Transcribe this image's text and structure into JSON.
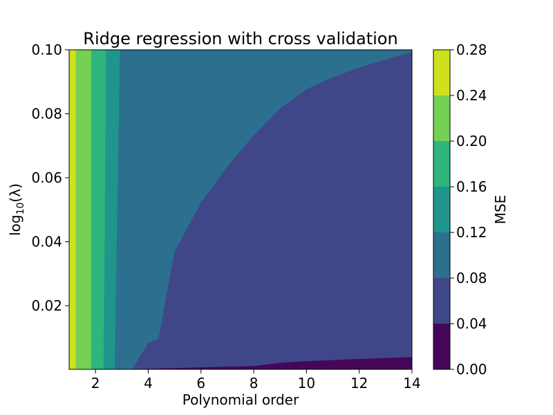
{
  "chart_data": {
    "type": "contour",
    "title": "Ridge regression with cross validation",
    "xlabel": "Polynomial order",
    "ylabel": {
      "prefix": "log",
      "sub": "10",
      "suffix": "(λ)"
    },
    "xlim": [
      1,
      14
    ],
    "ylim": [
      0.0001,
      0.1
    ],
    "xticks": [
      2,
      4,
      6,
      8,
      10,
      12,
      14
    ],
    "xtick_labels": [
      "2",
      "4",
      "6",
      "8",
      "10",
      "12",
      "14"
    ],
    "yticks": [
      0.02,
      0.04,
      0.06,
      0.08,
      0.1
    ],
    "ytick_labels": [
      "0.02",
      "0.04",
      "0.06",
      "0.08",
      "0.10"
    ],
    "colorbar": {
      "label": "MSE",
      "levels": [
        0.0,
        0.04,
        0.08,
        0.12,
        0.16,
        0.2,
        0.24,
        0.28
      ],
      "tick_labels": [
        "0.00",
        "0.04",
        "0.08",
        "0.12",
        "0.16",
        "0.20",
        "0.24",
        "0.28"
      ],
      "colors": [
        "#46075a",
        "#3f4788",
        "#2d6f8e",
        "#1f958b",
        "#2fb47c",
        "#75d054",
        "#cfe11c"
      ]
    },
    "contour_boundaries": [
      {
        "level": 0.04,
        "points": [
          [
            3.4,
            0.0001
          ],
          [
            8,
            0.0011
          ],
          [
            9,
            0.0021
          ],
          [
            10,
            0.0026
          ],
          [
            12,
            0.0033
          ],
          [
            14,
            0.0039
          ],
          [
            14,
            0.0001
          ]
        ]
      },
      {
        "level": 0.08,
        "points": [
          [
            3.4,
            0.0001
          ],
          [
            4,
            0.0082
          ],
          [
            4.4,
            0.0097
          ],
          [
            5,
            0.0367
          ],
          [
            6,
            0.0522
          ],
          [
            7,
            0.0634
          ],
          [
            8,
            0.0732
          ],
          [
            9,
            0.0816
          ],
          [
            10,
            0.0876
          ],
          [
            11,
            0.0913
          ],
          [
            12,
            0.0944
          ],
          [
            14,
            0.0993
          ],
          [
            14,
            0.0001
          ]
        ]
      },
      {
        "level": 0.12,
        "points": [
          [
            2.72,
            0.0001
          ],
          [
            2.92,
            0.1
          ]
        ]
      },
      {
        "level": 0.16,
        "points": [
          [
            2.3,
            0.0001
          ],
          [
            2.4,
            0.1
          ]
        ]
      },
      {
        "level": 0.2,
        "points": [
          [
            1.83,
            0.0001
          ],
          [
            1.83,
            0.1
          ]
        ]
      },
      {
        "level": 0.24,
        "points": [
          [
            1.24,
            0.0001
          ],
          [
            1.24,
            0.1
          ]
        ]
      }
    ]
  }
}
